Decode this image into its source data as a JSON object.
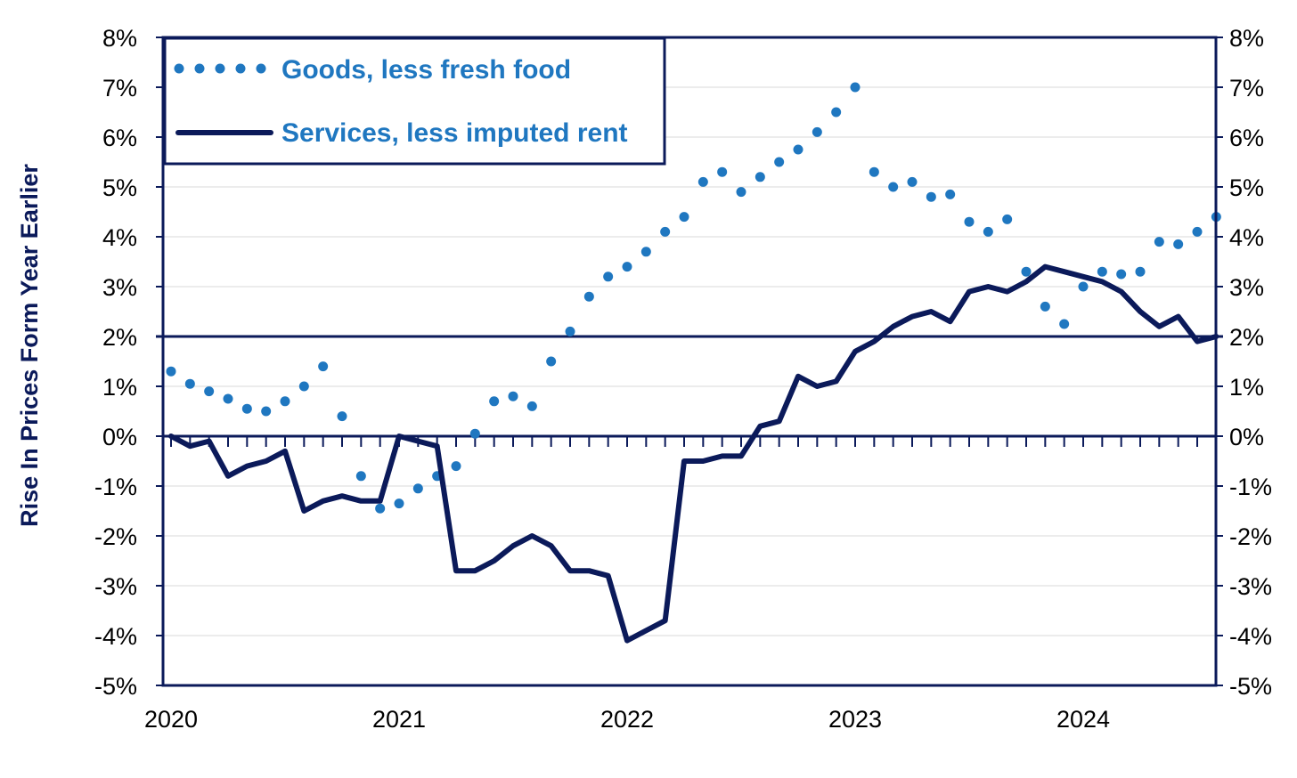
{
  "chart_data": {
    "type": "line",
    "ylabel": "Rise In Prices Form Year Earlier",
    "ylim": [
      -5,
      8
    ],
    "ytick_values": [
      8,
      7,
      6,
      5,
      4,
      3,
      2,
      1,
      0,
      -1,
      -2,
      -3,
      -4,
      -5
    ],
    "ytick_labels": [
      "8%",
      "7%",
      "6%",
      "5%",
      "4%",
      "3%",
      "2%",
      "1%",
      "0%",
      "-1%",
      "-2%",
      "-3%",
      "-4%",
      "-5%"
    ],
    "x_range": [
      "2020-01",
      "2024-08"
    ],
    "x_tick_labels": [
      "2020",
      "2021",
      "2022",
      "2023",
      "2024"
    ],
    "reference_line": 2,
    "grid": "horizontal",
    "legend_position": "top-left",
    "colors": {
      "goods": "#1f77c0",
      "services": "#0b1a5a",
      "axis": "#0b1a5a",
      "grid": "#d9d9d9"
    },
    "series": [
      {
        "name": "Goods, less fresh food",
        "style": "dotted",
        "x": [
          "2020-01",
          "2020-02",
          "2020-03",
          "2020-04",
          "2020-05",
          "2020-06",
          "2020-07",
          "2020-08",
          "2020-09",
          "2020-10",
          "2020-11",
          "2020-12",
          "2021-01",
          "2021-02",
          "2021-03",
          "2021-04",
          "2021-05",
          "2021-06",
          "2021-07",
          "2021-08",
          "2021-09",
          "2021-10",
          "2021-11",
          "2021-12",
          "2022-01",
          "2022-02",
          "2022-03",
          "2022-04",
          "2022-05",
          "2022-06",
          "2022-07",
          "2022-08",
          "2022-09",
          "2022-10",
          "2022-11",
          "2022-12",
          "2023-01",
          "2023-02",
          "2023-03",
          "2023-04",
          "2023-05",
          "2023-06",
          "2023-07",
          "2023-08",
          "2023-09",
          "2023-10",
          "2023-11",
          "2023-12",
          "2024-01",
          "2024-02",
          "2024-03",
          "2024-04",
          "2024-05",
          "2024-06",
          "2024-07",
          "2024-08"
        ],
        "values": [
          1.3,
          1.05,
          0.9,
          0.75,
          0.55,
          0.5,
          0.7,
          1.0,
          1.4,
          0.4,
          -0.8,
          -1.45,
          -1.35,
          -1.05,
          -0.8,
          -0.6,
          0.05,
          0.7,
          0.8,
          0.6,
          1.5,
          2.1,
          2.8,
          3.2,
          3.4,
          3.7,
          4.1,
          4.4,
          5.1,
          5.3,
          4.9,
          5.2,
          5.5,
          5.75,
          6.1,
          6.5,
          7.0,
          5.3,
          5.0,
          5.1,
          4.8,
          4.85,
          4.3,
          4.1,
          4.35,
          3.3,
          2.6,
          2.25,
          3.0,
          3.3,
          3.25,
          3.3,
          3.9,
          3.85,
          4.1,
          4.4
        ]
      },
      {
        "name": "Services, less imputed rent",
        "style": "solid",
        "x": [
          "2020-01",
          "2020-02",
          "2020-03",
          "2020-04",
          "2020-05",
          "2020-06",
          "2020-07",
          "2020-08",
          "2020-09",
          "2020-10",
          "2020-11",
          "2020-12",
          "2021-01",
          "2021-02",
          "2021-03",
          "2021-04",
          "2021-05",
          "2021-06",
          "2021-07",
          "2021-08",
          "2021-09",
          "2021-10",
          "2021-11",
          "2021-12",
          "2022-01",
          "2022-02",
          "2022-03",
          "2022-04",
          "2022-05",
          "2022-06",
          "2022-07",
          "2022-08",
          "2022-09",
          "2022-10",
          "2022-11",
          "2022-12",
          "2023-01",
          "2023-02",
          "2023-03",
          "2023-04",
          "2023-05",
          "2023-06",
          "2023-07",
          "2023-08",
          "2023-09",
          "2023-10",
          "2023-11",
          "2023-12",
          "2024-01",
          "2024-02",
          "2024-03",
          "2024-04",
          "2024-05",
          "2024-06",
          "2024-07",
          "2024-08"
        ],
        "values": [
          0.0,
          -0.2,
          -0.1,
          -0.8,
          -0.6,
          -0.5,
          -0.3,
          -1.5,
          -1.3,
          -1.2,
          -1.3,
          -1.3,
          0.0,
          -0.1,
          -0.2,
          -2.7,
          -2.7,
          -2.5,
          -2.2,
          -2.0,
          -2.2,
          -2.7,
          -2.7,
          -2.8,
          -4.1,
          -3.9,
          -3.7,
          -0.5,
          -0.5,
          -0.4,
          -0.4,
          0.2,
          0.3,
          1.2,
          1.0,
          1.1,
          1.7,
          1.9,
          2.2,
          2.4,
          2.5,
          2.3,
          2.9,
          3.0,
          2.9,
          3.1,
          3.4,
          3.3,
          3.2,
          3.1,
          2.9,
          2.5,
          2.2,
          2.4,
          1.9,
          2.0
        ]
      }
    ]
  }
}
